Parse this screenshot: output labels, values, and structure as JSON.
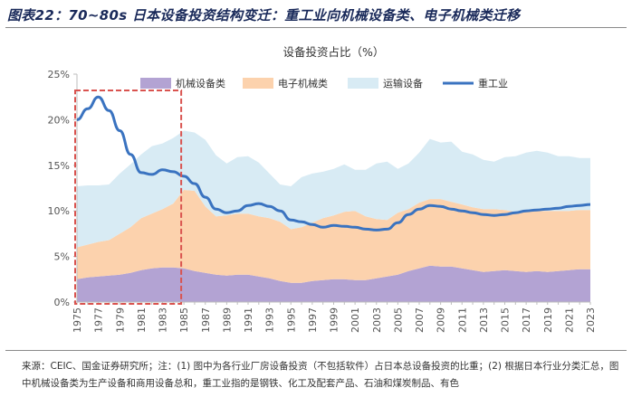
{
  "figure_title": "图表22：70~80s 日本设备投资结构变迁：重工业向机械设备类、电子机械类迁移",
  "source_note": "来源：CEIC、国金证券研究所；注：(1) 图中为各行业厂房设备投资（不包括软件）占日本总设备投资的比重；(2) 根据日本行业分类汇总，图中机械设备类为生产设备和商用设备总和，重工业指的是钢铁、化工及配套产品、石油和煤炭制品、有色",
  "colors": {
    "machinery": "#b3a3d3",
    "electronics": "#fcd2ad",
    "transport": "#d8ebf4",
    "heavy": "#3a73c0",
    "highlight_box": "#d9534f",
    "axis": "#bdbdbd"
  },
  "chart_data": {
    "type": "area",
    "title": "设备投资占比（%）",
    "y_ticks": [
      "0%",
      "5%",
      "10%",
      "15%",
      "20%",
      "25%"
    ],
    "ylim": [
      0,
      25
    ],
    "x": [
      1975,
      1976,
      1977,
      1978,
      1979,
      1980,
      1981,
      1982,
      1983,
      1984,
      1985,
      1986,
      1987,
      1988,
      1989,
      1990,
      1991,
      1992,
      1993,
      1994,
      1995,
      1996,
      1997,
      1998,
      1999,
      2000,
      2001,
      2002,
      2003,
      2004,
      2005,
      2006,
      2007,
      2008,
      2009,
      2010,
      2011,
      2012,
      2013,
      2014,
      2015,
      2016,
      2017,
      2018,
      2019,
      2020,
      2021,
      2022,
      2023
    ],
    "x_tick_labels": [
      "1975",
      "1977",
      "1979",
      "1981",
      "1983",
      "1985",
      "1987",
      "1989",
      "1991",
      "1993",
      "1995",
      "1997",
      "1999",
      "2001",
      "2003",
      "2005",
      "2007",
      "2009",
      "2011",
      "2013",
      "2015",
      "2017",
      "2019",
      "2021",
      "2023"
    ],
    "stacked_series": [
      {
        "name": "机械设备类",
        "values": [
          2.5,
          2.7,
          2.8,
          2.9,
          3.0,
          3.2,
          3.5,
          3.7,
          3.8,
          3.8,
          3.7,
          3.4,
          3.2,
          3.0,
          2.9,
          3.0,
          3.0,
          2.8,
          2.6,
          2.3,
          2.1,
          2.1,
          2.3,
          2.4,
          2.5,
          2.5,
          2.4,
          2.4,
          2.6,
          2.8,
          3.0,
          3.4,
          3.7,
          4.0,
          3.9,
          3.9,
          3.7,
          3.5,
          3.3,
          3.4,
          3.5,
          3.4,
          3.3,
          3.4,
          3.3,
          3.4,
          3.5,
          3.6,
          3.6
        ]
      },
      {
        "name": "电子机械类",
        "values": [
          3.5,
          3.6,
          3.8,
          3.9,
          4.5,
          5.0,
          5.7,
          6.0,
          6.4,
          7.0,
          8.6,
          8.8,
          7.3,
          6.4,
          6.6,
          6.7,
          6.7,
          6.6,
          6.6,
          6.5,
          5.9,
          6.1,
          6.4,
          6.8,
          7.0,
          7.4,
          7.6,
          7.0,
          6.5,
          6.2,
          6.8,
          6.8,
          7.2,
          7.3,
          7.4,
          7.1,
          7.0,
          6.9,
          6.9,
          6.8,
          6.6,
          6.5,
          6.7,
          6.6,
          6.7,
          6.6,
          6.5,
          6.5,
          6.5
        ]
      },
      {
        "name": "运输设备",
        "values": [
          6.7,
          6.5,
          6.2,
          6.1,
          6.6,
          6.9,
          7.0,
          7.4,
          7.2,
          7.2,
          6.5,
          6.4,
          7.3,
          6.7,
          5.7,
          6.2,
          6.3,
          5.9,
          4.9,
          4.1,
          4.7,
          5.5,
          5.4,
          5.1,
          5.1,
          5.2,
          4.5,
          5.1,
          6.1,
          6.4,
          4.8,
          5.0,
          5.5,
          6.6,
          6.2,
          6.6,
          5.8,
          5.8,
          5.4,
          5.2,
          5.8,
          6.1,
          6.4,
          6.6,
          6.4,
          6.0,
          6.0,
          5.7,
          5.7
        ]
      }
    ],
    "line_series": {
      "name": "重工业",
      "values": [
        20.0,
        21.2,
        22.5,
        21.0,
        18.8,
        16.2,
        14.2,
        14.0,
        14.5,
        14.3,
        13.8,
        13.0,
        11.5,
        10.2,
        9.8,
        10.0,
        10.6,
        10.8,
        10.5,
        10.0,
        9.0,
        8.8,
        8.5,
        8.2,
        8.4,
        8.3,
        8.2,
        8.0,
        7.9,
        8.0,
        8.7,
        9.6,
        10.2,
        10.6,
        10.5,
        10.2,
        10.0,
        9.8,
        9.6,
        9.5,
        9.6,
        9.8,
        10.0,
        10.1,
        10.2,
        10.3,
        10.5,
        10.6,
        10.7
      ]
    },
    "legend": [
      "机械设备类",
      "电子机械类",
      "运输设备",
      "重工业"
    ],
    "legend_placement": "top",
    "highlight_range": [
      1975,
      1985
    ],
    "grid": false
  }
}
